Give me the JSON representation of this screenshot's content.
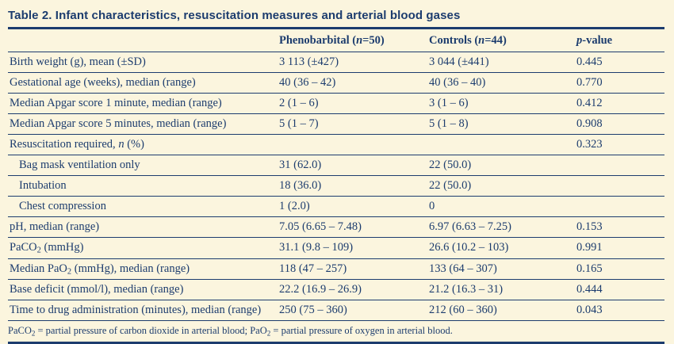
{
  "title": "Table 2. Infant characteristics, resuscitation measures and arterial blood gases",
  "header": {
    "col_label": [],
    "col_pheno": [
      {
        "text": "Phenobarbital ("
      },
      {
        "text": "n",
        "style": "italic"
      },
      {
        "text": "=50)"
      }
    ],
    "col_controls": [
      {
        "text": "Controls ("
      },
      {
        "text": "n",
        "style": "italic"
      },
      {
        "text": "=44)"
      }
    ],
    "col_p": [
      {
        "text": "p",
        "style": "italic"
      },
      {
        "text": "-value"
      }
    ]
  },
  "rows": [
    {
      "label": [
        {
          "text": "Birth weight (g), mean (±SD)"
        }
      ],
      "indent": false,
      "pheno": "3 113 (±427)",
      "controls": "3 044 (±441)",
      "p": "0.445"
    },
    {
      "label": [
        {
          "text": "Gestational age (weeks), median (range)"
        }
      ],
      "indent": false,
      "pheno": "40 (36 – 42)",
      "controls": "40 (36 – 40)",
      "p": "0.770"
    },
    {
      "label": [
        {
          "text": "Median Apgar score 1 minute, median (range)"
        }
      ],
      "indent": false,
      "pheno": "2 (1 – 6)",
      "controls": "3 (1 – 6)",
      "p": "0.412"
    },
    {
      "label": [
        {
          "text": "Median Apgar score 5 minutes, median (range)"
        }
      ],
      "indent": false,
      "pheno": "5 (1 – 7)",
      "controls": "5 (1 – 8)",
      "p": "0.908"
    },
    {
      "label": [
        {
          "text": "Resuscitation required, "
        },
        {
          "text": "n",
          "style": "italic"
        },
        {
          "text": " (%)"
        }
      ],
      "indent": false,
      "pheno": "",
      "controls": "",
      "p": "0.323"
    },
    {
      "label": [
        {
          "text": "Bag mask ventilation only"
        }
      ],
      "indent": true,
      "pheno": "31 (62.0)",
      "controls": "22 (50.0)",
      "p": ""
    },
    {
      "label": [
        {
          "text": "Intubation"
        }
      ],
      "indent": true,
      "pheno": "18 (36.0)",
      "controls": "22 (50.0)",
      "p": ""
    },
    {
      "label": [
        {
          "text": "Chest compression"
        }
      ],
      "indent": true,
      "pheno": "1 (2.0)",
      "controls": "0",
      "p": ""
    },
    {
      "label": [
        {
          "text": "pH, median (range)"
        }
      ],
      "indent": false,
      "pheno": "7.05 (6.65 – 7.48)",
      "controls": "6.97 (6.63 – 7.25)",
      "p": "0.153"
    },
    {
      "label": [
        {
          "text": "PaCO"
        },
        {
          "text": "2",
          "style": "sub"
        },
        {
          "text": " (mmHg)"
        }
      ],
      "indent": false,
      "pheno": "31.1 (9.8 – 109)",
      "controls": "26.6 (10.2 – 103)",
      "p": "0.991"
    },
    {
      "label": [
        {
          "text": "Median PaO"
        },
        {
          "text": "2",
          "style": "sub"
        },
        {
          "text": " (mmHg), median (range)"
        }
      ],
      "indent": false,
      "pheno": "118 (47 – 257)",
      "controls": "133 (64 – 307)",
      "p": "0.165"
    },
    {
      "label": [
        {
          "text": "Base deficit (mmol/l), median (range)"
        }
      ],
      "indent": false,
      "pheno": "22.2 (16.9 – 26.9)",
      "controls": "21.2 (16.3 – 31)",
      "p": "0.444"
    },
    {
      "label": [
        {
          "text": "Time to drug administration (minutes), median (range)"
        }
      ],
      "indent": false,
      "pheno": "250 (75 – 360)",
      "controls": "212 (60 – 360)",
      "p": "0.043"
    }
  ],
  "footnote": [
    {
      "text": "PaCO"
    },
    {
      "text": "2",
      "style": "sub"
    },
    {
      "text": " = partial pressure of carbon dioxide in arterial blood; PaO"
    },
    {
      "text": "2",
      "style": "sub"
    },
    {
      "text": " = partial pressure of oxygen in arterial blood."
    }
  ],
  "colors": {
    "background": "#fbf5de",
    "text": "#1c3c6e",
    "rule": "#1c3c6e"
  }
}
